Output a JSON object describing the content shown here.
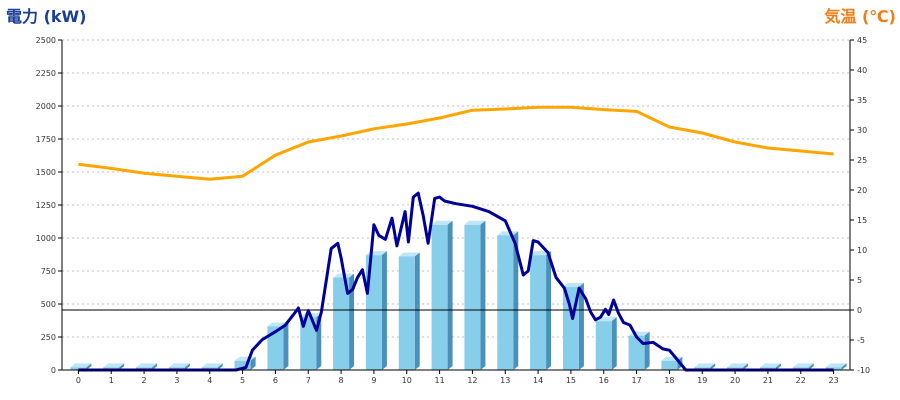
{
  "chart_data": {
    "type": "bar+line",
    "title": "",
    "y_left_label": "電力 (kW)",
    "y_right_label": "気温 (℃)",
    "colors": {
      "left_title": "#1a3d99",
      "right_title": "#f07d1a",
      "bar_front": "#87ceeb",
      "bar_side": "#4a90b8",
      "bar_top": "#bfe6f7",
      "temperature_line": "#ffa500",
      "power_line": "#000099",
      "zero_line": "#000000",
      "grid": "#c0c0c0"
    },
    "x_ticks": [
      "0",
      "1",
      "2",
      "3",
      "4",
      "5",
      "6",
      "7",
      "8",
      "9",
      "10",
      "11",
      "12",
      "13",
      "14",
      "15",
      "16",
      "17",
      "18",
      "19",
      "20",
      "21",
      "22",
      "23"
    ],
    "y_left_ticks": [
      "0",
      "250",
      "500",
      "750",
      "1000",
      "1250",
      "1500",
      "1750",
      "2000",
      "2250",
      "2500"
    ],
    "y_right_ticks": [
      "-10",
      "-5",
      "0",
      "5",
      "10",
      "15",
      "20",
      "25",
      "30",
      "35",
      "40",
      "45"
    ],
    "y_left_range": [
      0,
      2500
    ],
    "y_right_range": [
      -10,
      45
    ],
    "grid": true,
    "hourly_power_bars": {
      "x": [
        0,
        1,
        2,
        3,
        4,
        5,
        6,
        7,
        8,
        9,
        10,
        11,
        12,
        13,
        14,
        15,
        16,
        17,
        18,
        19,
        20,
        21,
        22,
        23
      ],
      "values": [
        20,
        20,
        20,
        20,
        20,
        70,
        330,
        400,
        700,
        870,
        860,
        1100,
        1100,
        1020,
        870,
        630,
        370,
        260,
        70,
        20,
        20,
        20,
        20,
        20
      ]
    },
    "temperature_series": {
      "x": [
        0,
        1,
        2,
        3,
        4,
        5,
        6,
        7,
        8,
        9,
        10,
        11,
        12,
        13,
        14,
        15,
        16,
        17,
        18,
        19,
        20,
        21,
        22,
        23
      ],
      "values": [
        24.3,
        23.6,
        22.8,
        22.3,
        21.8,
        22.3,
        25.8,
        28.0,
        29.0,
        30.2,
        31.0,
        32.0,
        33.3,
        33.5,
        33.8,
        33.8,
        33.4,
        33.1,
        30.5,
        29.5,
        28.0,
        27.0,
        26.5,
        26.0
      ]
    },
    "power_series": {
      "x": [
        0,
        4.8,
        5.1,
        5.3,
        5.6,
        6.0,
        6.3,
        6.55,
        6.7,
        6.85,
        7.0,
        7.25,
        7.4,
        7.7,
        7.9,
        8.0,
        8.2,
        8.35,
        8.5,
        8.65,
        8.8,
        9.0,
        9.15,
        9.35,
        9.55,
        9.7,
        9.95,
        10.05,
        10.2,
        10.35,
        10.5,
        10.65,
        10.85,
        11.0,
        11.15,
        11.5,
        12.0,
        12.5,
        13.0,
        13.3,
        13.55,
        13.7,
        13.85,
        14.0,
        14.3,
        14.55,
        14.8,
        14.95,
        15.05,
        15.25,
        15.45,
        15.6,
        15.75,
        15.9,
        16.05,
        16.15,
        16.3,
        16.45,
        16.6,
        16.8,
        17.0,
        17.2,
        17.5,
        17.8,
        18.0,
        18.5,
        19,
        20,
        21,
        22,
        23
      ],
      "values": [
        0,
        0,
        20,
        150,
        230,
        290,
        340,
        420,
        470,
        330,
        450,
        300,
        440,
        920,
        960,
        850,
        580,
        610,
        700,
        760,
        580,
        1100,
        1020,
        990,
        1150,
        940,
        1200,
        970,
        1310,
        1340,
        1170,
        960,
        1300,
        1310,
        1280,
        1260,
        1240,
        1200,
        1130,
        960,
        720,
        750,
        980,
        970,
        890,
        700,
        620,
        500,
        390,
        620,
        540,
        440,
        380,
        400,
        460,
        420,
        530,
        430,
        360,
        340,
        250,
        200,
        210,
        160,
        150,
        0,
        0,
        0,
        0,
        0,
        0
      ]
    }
  }
}
